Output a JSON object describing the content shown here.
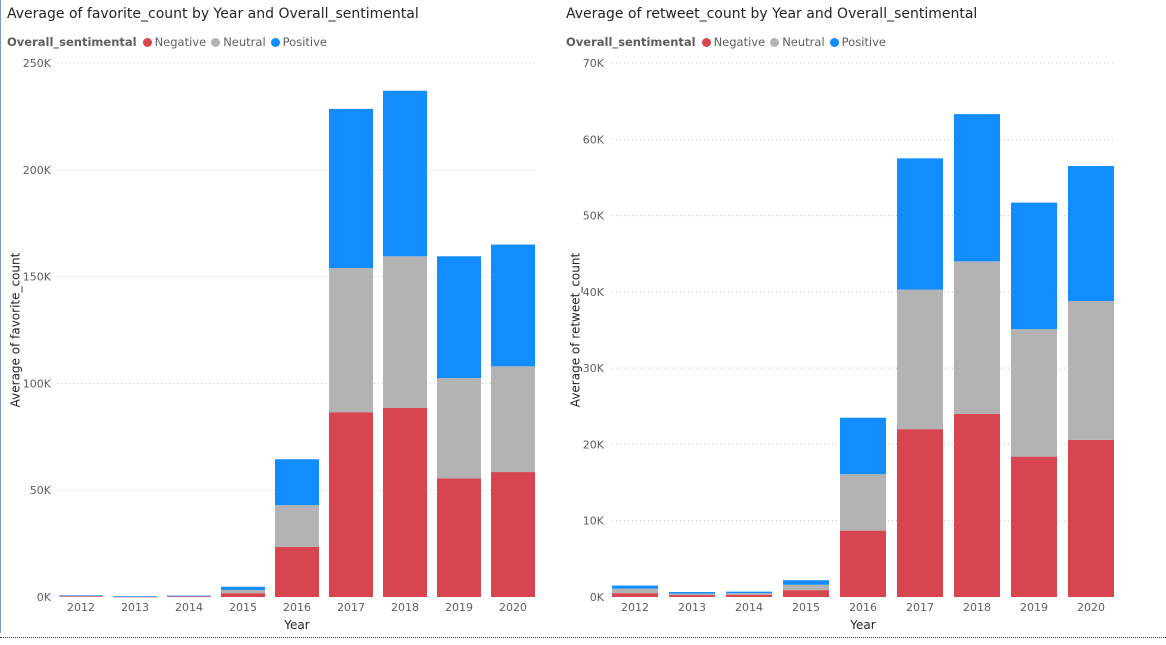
{
  "charts": [
    {
      "title": "Average of favorite_count by Year and Overall_sentimental",
      "legend": {
        "title": "Overall_sentimental",
        "items": [
          {
            "label": "Negative",
            "color": "#d64550"
          },
          {
            "label": "Neutral",
            "color": "#b3b3b3"
          },
          {
            "label": "Positive",
            "color": "#118dff"
          }
        ]
      }
    },
    {
      "title": "Average of retweet_count by Year and Overall_sentimental",
      "legend": {
        "title": "Overall_sentimental",
        "items": [
          {
            "label": "Negative",
            "color": "#d64550"
          },
          {
            "label": "Neutral",
            "color": "#b3b3b3"
          },
          {
            "label": "Positive",
            "color": "#118dff"
          }
        ]
      }
    }
  ],
  "chart_data": [
    {
      "type": "bar",
      "stacked": true,
      "title": "Average of favorite_count by Year and Overall_sentimental",
      "xlabel": "Year",
      "ylabel": "Average of favorite_count",
      "ylim": [
        0,
        250000
      ],
      "yticks": [
        0,
        50000,
        100000,
        150000,
        200000,
        250000
      ],
      "ytick_labels": [
        "0K",
        "50K",
        "100K",
        "150K",
        "200K",
        "250K"
      ],
      "grid": true,
      "categories": [
        "2012",
        "2013",
        "2014",
        "2015",
        "2016",
        "2017",
        "2018",
        "2019",
        "2020"
      ],
      "series": [
        {
          "name": "Negative",
          "color": "#d64550",
          "values": [
            300,
            150,
            250,
            1800,
            23500,
            86500,
            88500,
            55500,
            58500
          ]
        },
        {
          "name": "Neutral",
          "color": "#b3b3b3",
          "values": [
            300,
            150,
            250,
            1500,
            19500,
            67500,
            71000,
            47000,
            49500
          ]
        },
        {
          "name": "Positive",
          "color": "#118dff",
          "values": [
            200,
            100,
            150,
            1500,
            21500,
            74500,
            77500,
            57000,
            57000
          ]
        }
      ]
    },
    {
      "type": "bar",
      "stacked": true,
      "title": "Average of retweet_count by Year and Overall_sentimental",
      "xlabel": "Year",
      "ylabel": "Average of retweet_count",
      "ylim": [
        0,
        70000
      ],
      "yticks": [
        0,
        10000,
        20000,
        30000,
        40000,
        50000,
        60000,
        70000
      ],
      "ytick_labels": [
        "0K",
        "10K",
        "20K",
        "30K",
        "40K",
        "50K",
        "60K",
        "70K"
      ],
      "grid": true,
      "categories": [
        "2012",
        "2013",
        "2014",
        "2015",
        "2016",
        "2017",
        "2018",
        "2019",
        "2020"
      ],
      "series": [
        {
          "name": "Negative",
          "color": "#d64550",
          "values": [
            500,
            250,
            300,
            900,
            8700,
            22000,
            24000,
            18400,
            20600
          ]
        },
        {
          "name": "Neutral",
          "color": "#b3b3b3",
          "values": [
            600,
            200,
            200,
            700,
            7400,
            18300,
            20000,
            16700,
            18200
          ]
        },
        {
          "name": "Positive",
          "color": "#118dff",
          "values": [
            400,
            200,
            200,
            600,
            7400,
            17200,
            19300,
            16600,
            17700
          ]
        }
      ]
    }
  ]
}
